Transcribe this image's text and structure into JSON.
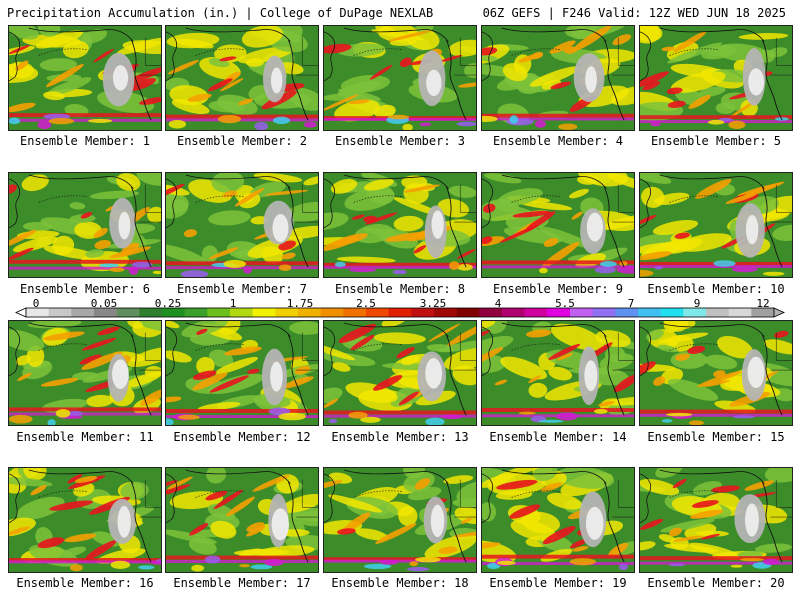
{
  "header": {
    "title": "Precipitation Accumulation (in.) | College of DuPage NEXLAB",
    "run_info": "06Z GEFS | F246 Valid: 12Z WED JUN 18 2025"
  },
  "panels": [
    {
      "label": "Ensemble Member: 1"
    },
    {
      "label": "Ensemble Member: 2"
    },
    {
      "label": "Ensemble Member: 3"
    },
    {
      "label": "Ensemble Member: 4"
    },
    {
      "label": "Ensemble Member: 5"
    },
    {
      "label": "Ensemble Member: 6"
    },
    {
      "label": "Ensemble Member: 7"
    },
    {
      "label": "Ensemble Member: 8"
    },
    {
      "label": "Ensemble Member: 9"
    },
    {
      "label": "Ensemble Member: 10"
    },
    {
      "label": "Ensemble Member: 11"
    },
    {
      "label": "Ensemble Member: 12"
    },
    {
      "label": "Ensemble Member: 13"
    },
    {
      "label": "Ensemble Member: 14"
    },
    {
      "label": "Ensemble Member: 15"
    },
    {
      "label": "Ensemble Member: 16"
    },
    {
      "label": "Ensemble Member: 17"
    },
    {
      "label": "Ensemble Member: 18"
    },
    {
      "label": "Ensemble Member: 19"
    },
    {
      "label": "Ensemble Member: 20"
    }
  ],
  "colorbar": {
    "labels": [
      "0",
      "0.05",
      "0.25",
      "1",
      "1.75",
      "2.5",
      "3.25",
      "4",
      "5.5",
      "7",
      "9",
      "12"
    ],
    "colors": [
      "#e8e8e8",
      "#c8c8c8",
      "#a8a8a8",
      "#888888",
      "#5f8f5f",
      "#2f7f2f",
      "#1f8f1f",
      "#3aa02a",
      "#6cbf1c",
      "#b4d810",
      "#f0f000",
      "#f0d000",
      "#f0b000",
      "#f09000",
      "#f07000",
      "#f04800",
      "#e02000",
      "#c01010",
      "#a00808",
      "#800000",
      "#900040",
      "#b00070",
      "#d000a0",
      "#e000e0",
      "#c060f0",
      "#9070f0",
      "#6090f0",
      "#40c0f0",
      "#20e0f0",
      "#80e8e8",
      "#c0c0c0",
      "#d8d8d8",
      "#a0a0a0"
    ]
  },
  "palette": {
    "green": "#3d8c2a",
    "dark_green": "#2c6e1e",
    "light_green": "#7cc23a",
    "yellow": "#f2e600",
    "orange": "#f5a000",
    "red": "#e8141e",
    "magenta": "#d21ad2",
    "purple": "#9a5cf0",
    "cyan": "#40d0f0",
    "gray": "#b4b4b4",
    "white": "#f0f0f0",
    "coast": "#111111"
  }
}
